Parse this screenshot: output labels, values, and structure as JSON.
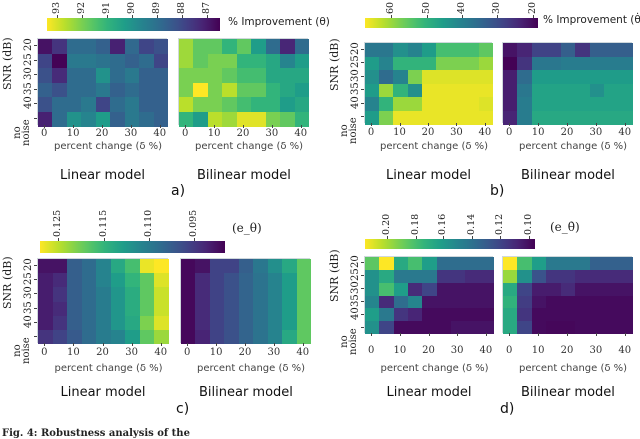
{
  "caption": "Fig. 4: Robustness analysis of the",
  "colormap": "viridis",
  "chart_data": [
    {
      "type": "heatmap",
      "panel_label": "a)",
      "colorbar": {
        "label": "% Improvement (θ)",
        "ticks": [
          "93",
          "92",
          "91",
          "90",
          "89",
          "88",
          "87"
        ],
        "tick_values": [
          93,
          92,
          91,
          90,
          89,
          88,
          87
        ],
        "range": [
          86.5,
          93.4
        ],
        "high_color": "#fde725",
        "low_color": "#440154"
      },
      "x_label": "percent change (δ %)",
      "y_label": "SNR (dB)",
      "x_categories": [
        "0",
        "5",
        "10",
        "15",
        "20",
        "25",
        "30",
        "35",
        "40"
      ],
      "x_tick_labels": [
        "0",
        "10",
        "20",
        "30",
        "40"
      ],
      "y_categories": [
        "20",
        "25",
        "30",
        "35",
        "40",
        "no noise"
      ],
      "maps": [
        {
          "title": "Linear model",
          "values": [
            [
              86.8,
              87.5,
              88.9,
              88.9,
              88.6,
              87.1,
              88.8,
              87.9,
              88.2
            ],
            [
              87.9,
              86.5,
              89.3,
              89.3,
              89.1,
              88.9,
              88.6,
              88.9,
              87.9
            ],
            [
              88.2,
              87.3,
              88.9,
              88.9,
              90.0,
              88.9,
              89.3,
              88.6,
              88.6
            ],
            [
              88.6,
              88.2,
              88.9,
              88.9,
              89.3,
              88.6,
              88.9,
              88.6,
              88.6
            ],
            [
              88.2,
              88.9,
              88.9,
              89.3,
              87.9,
              88.9,
              89.3,
              88.6,
              88.6
            ],
            [
              87.1,
              88.9,
              90.0,
              89.6,
              90.3,
              88.6,
              89.3,
              88.9,
              88.6
            ]
          ]
        },
        {
          "title": "Bilinear model",
          "values": [
            [
              92.4,
              91.7,
              91.7,
              91.0,
              91.7,
              90.3,
              88.9,
              87.2,
              88.9
            ],
            [
              92.4,
              91.7,
              92.0,
              92.0,
              91.0,
              91.0,
              90.6,
              89.6,
              90.3
            ],
            [
              92.0,
              92.0,
              92.0,
              91.7,
              91.3,
              91.3,
              90.6,
              90.6,
              90.6
            ],
            [
              92.0,
              93.4,
              92.0,
              92.7,
              91.7,
              91.7,
              91.0,
              90.6,
              90.3
            ],
            [
              92.7,
              92.0,
              92.0,
              91.7,
              91.3,
              91.0,
              91.0,
              90.3,
              90.6
            ],
            [
              91.0,
              90.3,
              92.7,
              92.4,
              93.1,
              93.1,
              92.0,
              91.7,
              91.0
            ]
          ]
        }
      ]
    },
    {
      "type": "heatmap",
      "panel_label": "b)",
      "colorbar": {
        "label": "% Improvement (θ̇)",
        "ticks": [
          "60",
          "50",
          "40",
          "30",
          "20"
        ],
        "tick_values": [
          60,
          50,
          40,
          30,
          20
        ],
        "range": [
          18.6,
          67.3
        ],
        "high_color": "#fde725",
        "low_color": "#440154"
      },
      "x_label": "percent change (δ %)",
      "y_label": "SNR (dB)",
      "x_categories": [
        "0",
        "5",
        "10",
        "15",
        "20",
        "25",
        "30",
        "35",
        "40"
      ],
      "x_tick_labels": [
        "0",
        "10",
        "20",
        "30",
        "40"
      ],
      "y_categories": [
        "20",
        "25",
        "30",
        "35",
        "40",
        "no noise"
      ],
      "maps": [
        {
          "title": "Linear model",
          "values": [
            [
              38.1,
              38.1,
              43.0,
              40.5,
              45.4,
              52.7,
              52.7,
              52.7,
              55.1
            ],
            [
              45.4,
              40.5,
              50.3,
              50.3,
              50.3,
              57.6,
              57.6,
              57.6,
              60.0
            ],
            [
              43.0,
              35.6,
              40.5,
              57.6,
              64.9,
              64.9,
              64.9,
              64.9,
              64.9
            ],
            [
              45.4,
              60.0,
              50.3,
              43.0,
              65.8,
              65.8,
              65.8,
              65.8,
              65.8
            ],
            [
              40.5,
              50.3,
              60.0,
              60.0,
              65.8,
              65.8,
              65.8,
              65.8,
              64.9
            ],
            [
              45.4,
              57.6,
              65.8,
              65.8,
              65.8,
              65.8,
              65.8,
              65.8,
              65.8
            ]
          ]
        },
        {
          "title": "Bilinear model",
          "values": [
            [
              21.0,
              23.5,
              28.3,
              28.3,
              33.2,
              25.9,
              33.2,
              33.2,
              33.2
            ],
            [
              18.6,
              25.9,
              38.1,
              38.1,
              39.1,
              39.1,
              39.1,
              39.1,
              39.1
            ],
            [
              22.5,
              35.6,
              45.4,
              45.4,
              45.4,
              45.4,
              45.4,
              45.4,
              45.4
            ],
            [
              22.5,
              38.1,
              46.8,
              46.8,
              46.8,
              46.8,
              43.0,
              46.8,
              46.8
            ],
            [
              22.5,
              39.1,
              46.8,
              46.8,
              46.8,
              46.8,
              46.8,
              46.8,
              46.8
            ],
            [
              23.5,
              39.1,
              47.8,
              47.8,
              47.8,
              47.8,
              47.8,
              47.8,
              47.8
            ]
          ]
        }
      ]
    },
    {
      "type": "heatmap",
      "panel_label": "c)",
      "colorbar": {
        "label": "(e_θ)",
        "ticks": [
          "0.125",
          "0.115",
          "0.110",
          "0.095"
        ],
        "tick_values": [
          0.125,
          0.115,
          0.11,
          0.095
        ],
        "high_color": "#fde725",
        "low_color": "#440154"
      },
      "x_label": "percent change (δ %)",
      "y_label": "SNR (dB)",
      "x_categories": [
        "0",
        "5",
        "10",
        "15",
        "20",
        "25",
        "30",
        "35",
        "40"
      ],
      "x_tick_labels": [
        "0",
        "10",
        "20",
        "30",
        "40"
      ],
      "y_categories": [
        "20",
        "25",
        "30",
        "35",
        "40",
        "no noise"
      ],
      "maps": [
        {
          "title": "Linear model",
          "values": [
            [
              0.0879,
              0.0879,
              0.1032,
              0.1063,
              0.1108,
              0.1139,
              0.1169,
              0.1276,
              0.1288
            ],
            [
              0.0897,
              0.0922,
              0.1032,
              0.1063,
              0.1108,
              0.1129,
              0.115,
              0.1189,
              0.1268
            ],
            [
              0.0897,
              0.094,
              0.1032,
              0.1063,
              0.1102,
              0.1123,
              0.1143,
              0.1189,
              0.1256
            ],
            [
              0.0897,
              0.0922,
              0.1032,
              0.1063,
              0.1102,
              0.1123,
              0.1143,
              0.1189,
              0.1256
            ],
            [
              0.0897,
              0.094,
              0.1032,
              0.1063,
              0.1102,
              0.1123,
              0.1139,
              0.1209,
              0.1268
            ],
            [
              0.094,
              0.0971,
              0.102,
              0.1063,
              0.1102,
              0.1108,
              0.1129,
              0.1189,
              0.1228
            ]
          ]
        },
        {
          "title": "Bilinear model",
          "values": [
            [
              0.0861,
              0.0879,
              0.0971,
              0.0971,
              0.1032,
              0.1093,
              0.1118,
              0.1139,
              0.1189
            ],
            [
              0.0861,
              0.0922,
              0.0971,
              0.1001,
              0.1044,
              0.1081,
              0.1108,
              0.1129,
              0.1189
            ],
            [
              0.0861,
              0.0922,
              0.0971,
              0.1001,
              0.1044,
              0.1081,
              0.1108,
              0.1129,
              0.1189
            ],
            [
              0.0861,
              0.0922,
              0.0971,
              0.1001,
              0.1044,
              0.1081,
              0.1108,
              0.1129,
              0.1189
            ],
            [
              0.0861,
              0.0922,
              0.0971,
              0.1001,
              0.1044,
              0.1081,
              0.1108,
              0.1129,
              0.1189
            ],
            [
              0.0861,
              0.091,
              0.0971,
              0.1001,
              0.1044,
              0.1081,
              0.1108,
              0.1139,
              0.1189
            ]
          ]
        }
      ]
    },
    {
      "type": "heatmap",
      "panel_label": "d)",
      "colorbar": {
        "label": "(e_θ̇)",
        "ticks": [
          "0.20",
          "0.18",
          "0.16",
          "0.14",
          "0.12",
          "0.10"
        ],
        "tick_values": [
          0.2,
          0.18,
          0.16,
          0.14,
          0.12,
          0.1
        ],
        "range": [
          0.096,
          0.215
        ],
        "high_color": "#fde725",
        "low_color": "#440154"
      },
      "x_label": "percent change (δ %)",
      "y_label": "SNR (dB)",
      "x_categories": [
        "0",
        "5",
        "10",
        "15",
        "20",
        "25",
        "30",
        "35",
        "40"
      ],
      "x_tick_labels": [
        "0",
        "10",
        "20",
        "30",
        "40"
      ],
      "y_categories": [
        "20",
        "25",
        "30",
        "35",
        "40",
        "no noise"
      ],
      "maps": [
        {
          "title": "Linear model",
          "values": [
            [
              0.185,
              0.215,
              0.168,
              0.18,
              0.162,
              0.138,
              0.138,
              0.138,
              0.138
            ],
            [
              0.156,
              0.168,
              0.144,
              0.144,
              0.144,
              0.114,
              0.114,
              0.11,
              0.11
            ],
            [
              0.156,
              0.18,
              0.162,
              0.11,
              0.12,
              0.102,
              0.102,
              0.102,
              0.102
            ],
            [
              0.15,
              0.11,
              0.138,
              0.15,
              0.102,
              0.102,
              0.102,
              0.102,
              0.102
            ],
            [
              0.162,
              0.144,
              0.114,
              0.108,
              0.099,
              0.099,
              0.099,
              0.099,
              0.099
            ],
            [
              0.156,
              0.12,
              0.099,
              0.099,
              0.099,
              0.099,
              0.102,
              0.102,
              0.102
            ]
          ]
        },
        {
          "title": "Bilinear model",
          "values": [
            [
              0.215,
              0.18,
              0.162,
              0.144,
              0.144,
              0.144,
              0.132,
              0.132,
              0.132
            ],
            [
              0.197,
              0.156,
              0.126,
              0.114,
              0.114,
              0.11,
              0.11,
              0.11,
              0.11
            ],
            [
              0.168,
              0.12,
              0.105,
              0.105,
              0.11,
              0.102,
              0.102,
              0.102,
              0.102
            ],
            [
              0.173,
              0.117,
              0.102,
              0.099,
              0.099,
              0.099,
              0.099,
              0.099,
              0.099
            ],
            [
              0.168,
              0.114,
              0.099,
              0.099,
              0.099,
              0.099,
              0.099,
              0.099,
              0.099
            ],
            [
              0.168,
              0.12,
              0.099,
              0.098,
              0.098,
              0.099,
              0.099,
              0.099,
              0.099
            ]
          ]
        }
      ]
    }
  ]
}
